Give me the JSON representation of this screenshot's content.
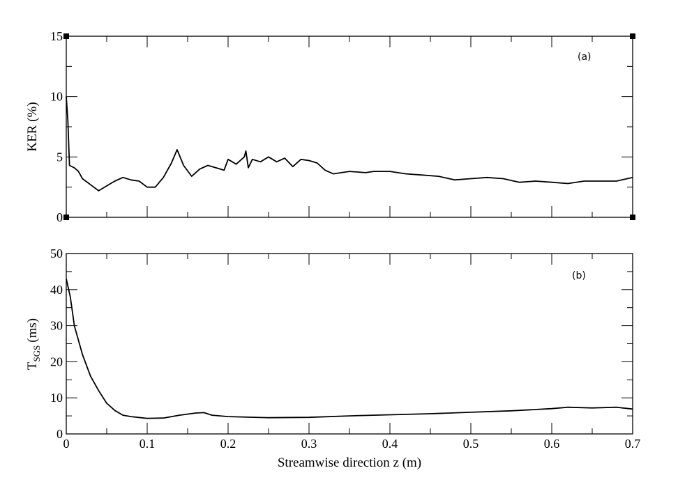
{
  "chart_data": [
    {
      "type": "line",
      "panel_label": "(a)",
      "ylabel": "KER (%)",
      "xlabel": "",
      "xlim": [
        0,
        0.7
      ],
      "ylim": [
        0,
        15
      ],
      "xticks": [
        "0",
        "0.1",
        "0.2",
        "0.3",
        "0.4",
        "0.5",
        "0.6",
        "0.7"
      ],
      "yticks": [
        "0",
        "5",
        "10",
        "15"
      ],
      "series": [
        {
          "name": "KER",
          "x": [
            0,
            0.002,
            0.004,
            0.01,
            0.015,
            0.02,
            0.03,
            0.04,
            0.05,
            0.06,
            0.07,
            0.08,
            0.09,
            0.1,
            0.11,
            0.12,
            0.13,
            0.137,
            0.145,
            0.155,
            0.165,
            0.175,
            0.185,
            0.195,
            0.2,
            0.21,
            0.22,
            0.222,
            0.225,
            0.23,
            0.24,
            0.25,
            0.26,
            0.27,
            0.28,
            0.29,
            0.3,
            0.31,
            0.32,
            0.33,
            0.34,
            0.35,
            0.37,
            0.38,
            0.4,
            0.42,
            0.44,
            0.46,
            0.48,
            0.5,
            0.52,
            0.54,
            0.56,
            0.58,
            0.6,
            0.62,
            0.64,
            0.66,
            0.68,
            0.7
          ],
          "y": [
            10,
            8,
            4.3,
            4.1,
            3.8,
            3.2,
            2.7,
            2.2,
            2.6,
            3.0,
            3.3,
            3.1,
            3.0,
            2.5,
            2.5,
            3.3,
            4.5,
            5.6,
            4.3,
            3.4,
            4.0,
            4.3,
            4.1,
            3.9,
            4.8,
            4.4,
            5.0,
            5.5,
            4.1,
            4.8,
            4.6,
            5.0,
            4.6,
            4.9,
            4.2,
            4.8,
            4.7,
            4.5,
            3.9,
            3.6,
            3.7,
            3.8,
            3.7,
            3.8,
            3.8,
            3.6,
            3.5,
            3.4,
            3.1,
            3.2,
            3.3,
            3.2,
            2.9,
            3.0,
            2.9,
            2.8,
            3.0,
            3.0,
            3.0,
            3.3
          ]
        }
      ]
    },
    {
      "type": "line",
      "panel_label": "(b)",
      "ylabel": "T",
      "ylabel_sub": "SGS",
      "ylabel_unit": "(ms)",
      "xlabel": "Streamwise direction z (m)",
      "xlim": [
        0,
        0.7
      ],
      "ylim": [
        0,
        50
      ],
      "xticks": [
        "0",
        "0.1",
        "0.2",
        "0.3",
        "0.4",
        "0.5",
        "0.6",
        "0.7"
      ],
      "yticks": [
        "0",
        "10",
        "20",
        "30",
        "40",
        "50"
      ],
      "series": [
        {
          "name": "T_SGS",
          "x": [
            0,
            0.005,
            0.01,
            0.02,
            0.03,
            0.04,
            0.05,
            0.06,
            0.07,
            0.08,
            0.1,
            0.12,
            0.14,
            0.16,
            0.17,
            0.18,
            0.2,
            0.25,
            0.3,
            0.35,
            0.4,
            0.45,
            0.5,
            0.55,
            0.6,
            0.62,
            0.65,
            0.68,
            0.7
          ],
          "y": [
            43,
            38,
            30,
            22,
            16,
            12,
            8.5,
            6.5,
            5.2,
            4.8,
            4.3,
            4.4,
            5.2,
            5.8,
            5.9,
            5.2,
            4.8,
            4.5,
            4.6,
            5.0,
            5.3,
            5.6,
            6.0,
            6.4,
            7.0,
            7.4,
            7.2,
            7.4,
            6.9
          ]
        }
      ]
    }
  ]
}
